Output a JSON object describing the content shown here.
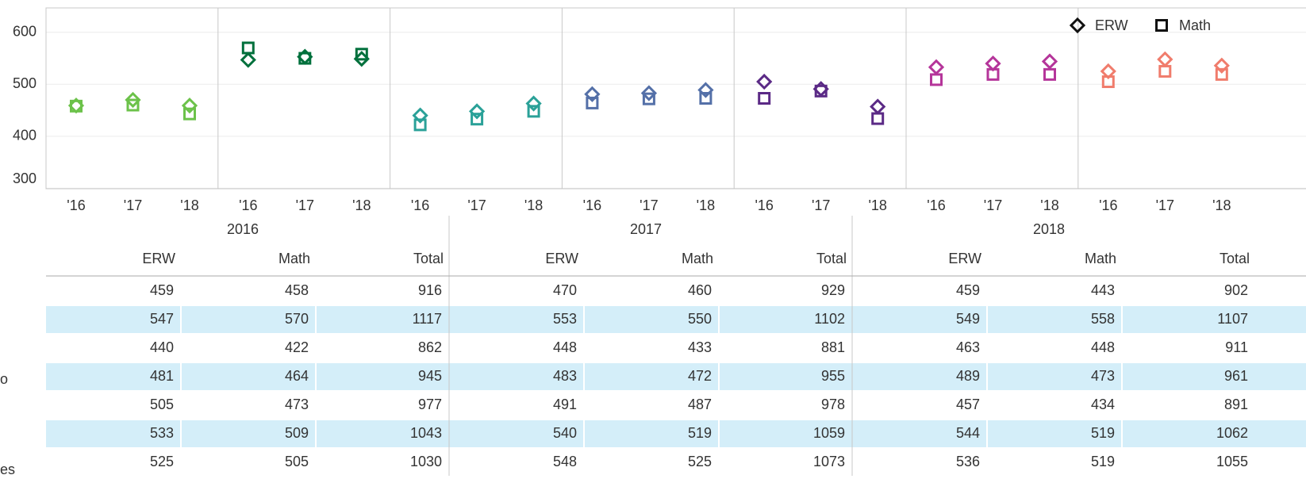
{
  "chart_data": {
    "type": "dot",
    "categories": [
      "'16",
      "'17",
      "'18"
    ],
    "legend": [
      {
        "name": "ERW",
        "marker": "diamond"
      },
      {
        "name": "Math",
        "marker": "square"
      }
    ],
    "ylim": [
      299,
      647
    ],
    "yticks": [
      300,
      400,
      500,
      600
    ],
    "grid": true,
    "panels": [
      {
        "color": "#6cc24a",
        "series": [
          {
            "values": [
              459,
              470,
              459
            ]
          },
          {
            "values": [
              458,
              460,
              443
            ]
          }
        ]
      },
      {
        "color": "#00703c",
        "series": [
          {
            "values": [
              547,
              553,
              549
            ]
          },
          {
            "values": [
              570,
              550,
              558
            ]
          }
        ]
      },
      {
        "color": "#2aa198",
        "series": [
          {
            "values": [
              440,
              448,
              463
            ]
          },
          {
            "values": [
              422,
              433,
              448
            ]
          }
        ]
      },
      {
        "color": "#5470a8",
        "series": [
          {
            "values": [
              481,
              483,
              489
            ]
          },
          {
            "values": [
              464,
              472,
              473
            ]
          }
        ]
      },
      {
        "color": "#5b2a86",
        "series": [
          {
            "values": [
              505,
              491,
              457
            ]
          },
          {
            "values": [
              473,
              487,
              434
            ]
          }
        ]
      },
      {
        "color": "#b5359a",
        "series": [
          {
            "values": [
              533,
              540,
              544
            ]
          },
          {
            "values": [
              509,
              519,
              519
            ]
          }
        ]
      },
      {
        "color": "#f07c6c",
        "series": [
          {
            "values": [
              525,
              548,
              536
            ]
          },
          {
            "values": [
              505,
              525,
              519
            ]
          }
        ]
      }
    ]
  },
  "table": {
    "years": [
      "2016",
      "2017",
      "2018"
    ],
    "columns": [
      "ERW",
      "Math",
      "Total"
    ],
    "totals": [
      [
        916,
        929,
        902
      ],
      [
        1117,
        1102,
        1107
      ],
      [
        862,
        881,
        911
      ],
      [
        945,
        955,
        961
      ],
      [
        977,
        978,
        891
      ],
      [
        1043,
        1059,
        1062
      ],
      [
        1030,
        1073,
        1055
      ]
    ],
    "row_label_fragments": [
      "o",
      "es"
    ]
  }
}
